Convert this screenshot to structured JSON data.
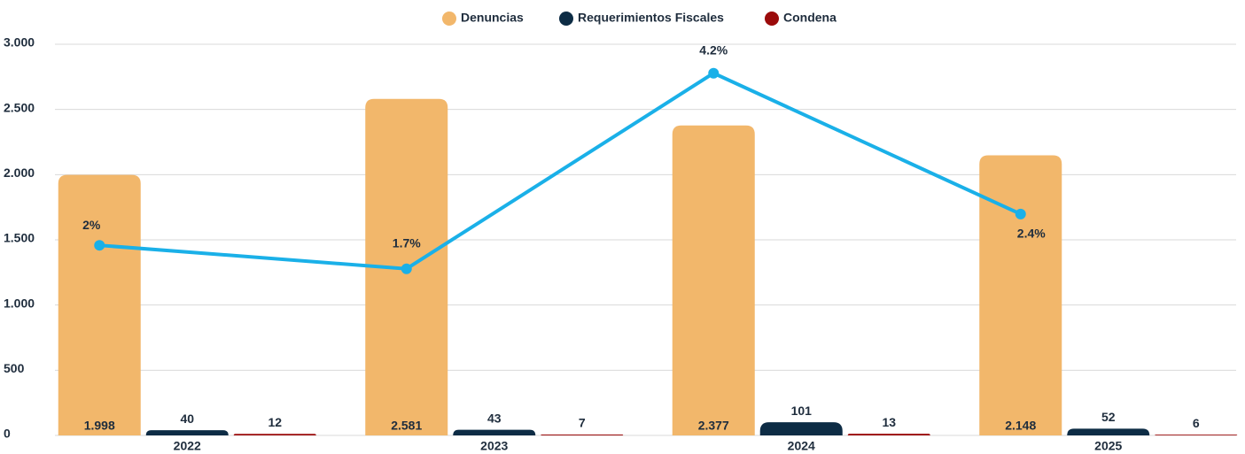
{
  "chart_data": {
    "type": "bar",
    "categories": [
      "2022",
      "2023",
      "2024",
      "2025"
    ],
    "series": [
      {
        "name": "Denuncias",
        "color": "#f2b76b",
        "values": [
          1998,
          2581,
          2377,
          2148
        ],
        "value_labels": [
          "1.998",
          "2.581",
          "2.377",
          "2.148"
        ]
      },
      {
        "name": "Requerimientos Fiscales",
        "color": "#0d2c45",
        "values": [
          40,
          43,
          101,
          52
        ]
      },
      {
        "name": "Condena",
        "color": "#9b0b0b",
        "values": [
          12,
          7,
          13,
          6
        ]
      }
    ],
    "line": {
      "color": "#1ab0e8",
      "axis": "y2",
      "values": [
        2,
        1.7,
        4.2,
        2.4
      ],
      "value_labels": [
        "2%",
        "1.7%",
        "4.2%",
        "2.4%"
      ]
    },
    "ylim": [
      0,
      3000
    ],
    "yticks": [
      0,
      500,
      {
        "value": 1000,
        "label": "1.000"
      },
      {
        "value": 1500,
        "label": "1.500"
      },
      {
        "value": 2000,
        "label": "2.000"
      },
      {
        "value": 2500,
        "label": "2.500"
      },
      {
        "value": 3000,
        "label": "3.000"
      }
    ],
    "y2lim": [
      -0.43,
      4.57
    ],
    "grid": true,
    "legend": "top"
  }
}
